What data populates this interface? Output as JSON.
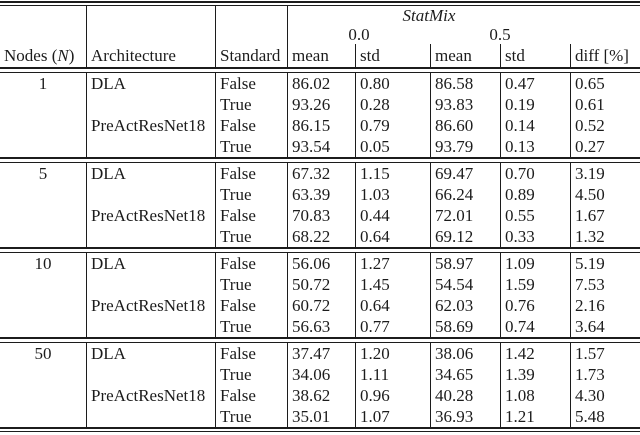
{
  "table": {
    "span_title": "StatMix",
    "levels": {
      "l0": "0.0",
      "l1": "0.5"
    },
    "headers": {
      "nodes_prefix": "Nodes (",
      "nodes_var": "N",
      "nodes_suffix": ")",
      "architecture": "Architecture",
      "standard": "Standard",
      "mean": "mean",
      "std": "std",
      "diff": "diff [%]"
    },
    "groups": [
      {
        "nodes": "1",
        "rows": [
          {
            "arch": "DLA",
            "standard": "False",
            "mean0": "86.02",
            "std0": "0.80",
            "mean5": "86.58",
            "std5": "0.47",
            "diff": "0.65"
          },
          {
            "arch": "",
            "standard": "True",
            "mean0": "93.26",
            "std0": "0.28",
            "mean5": "93.83",
            "std5": "0.19",
            "diff": "0.61"
          },
          {
            "arch": "PreActResNet18",
            "standard": "False",
            "mean0": "86.15",
            "std0": "0.79",
            "mean5": "86.60",
            "std5": "0.14",
            "diff": "0.52"
          },
          {
            "arch": "",
            "standard": "True",
            "mean0": "93.54",
            "std0": "0.05",
            "mean5": "93.79",
            "std5": "0.13",
            "diff": "0.27"
          }
        ]
      },
      {
        "nodes": "5",
        "rows": [
          {
            "arch": "DLA",
            "standard": "False",
            "mean0": "67.32",
            "std0": "1.15",
            "mean5": "69.47",
            "std5": "0.70",
            "diff": "3.19"
          },
          {
            "arch": "",
            "standard": "True",
            "mean0": "63.39",
            "std0": "1.03",
            "mean5": "66.24",
            "std5": "0.89",
            "diff": "4.50"
          },
          {
            "arch": "PreActResNet18",
            "standard": "False",
            "mean0": "70.83",
            "std0": "0.44",
            "mean5": "72.01",
            "std5": "0.55",
            "diff": "1.67"
          },
          {
            "arch": "",
            "standard": "True",
            "mean0": "68.22",
            "std0": "0.64",
            "mean5": "69.12",
            "std5": "0.33",
            "diff": "1.32"
          }
        ]
      },
      {
        "nodes": "10",
        "rows": [
          {
            "arch": "DLA",
            "standard": "False",
            "mean0": "56.06",
            "std0": "1.27",
            "mean5": "58.97",
            "std5": "1.09",
            "diff": "5.19"
          },
          {
            "arch": "",
            "standard": "True",
            "mean0": "50.72",
            "std0": "1.45",
            "mean5": "54.54",
            "std5": "1.59",
            "diff": "7.53"
          },
          {
            "arch": "PreActResNet18",
            "standard": "False",
            "mean0": "60.72",
            "std0": "0.64",
            "mean5": "62.03",
            "std5": "0.76",
            "diff": "2.16"
          },
          {
            "arch": "",
            "standard": "True",
            "mean0": "56.63",
            "std0": "0.77",
            "mean5": "58.69",
            "std5": "0.74",
            "diff": "3.64"
          }
        ]
      },
      {
        "nodes": "50",
        "rows": [
          {
            "arch": "DLA",
            "standard": "False",
            "mean0": "37.47",
            "std0": "1.20",
            "mean5": "38.06",
            "std5": "1.42",
            "diff": "1.57"
          },
          {
            "arch": "",
            "standard": "True",
            "mean0": "34.06",
            "std0": "1.11",
            "mean5": "34.65",
            "std5": "1.39",
            "diff": "1.73"
          },
          {
            "arch": "PreActResNet18",
            "standard": "False",
            "mean0": "38.62",
            "std0": "0.96",
            "mean5": "40.28",
            "std5": "1.08",
            "diff": "4.30"
          },
          {
            "arch": "",
            "standard": "True",
            "mean0": "35.01",
            "std0": "1.07",
            "mean5": "36.93",
            "std5": "1.21",
            "diff": "5.48"
          }
        ]
      }
    ],
    "colors": {
      "text": "#1c1c1c",
      "background": "#ffffff",
      "rule": "#1c1c1c"
    }
  }
}
